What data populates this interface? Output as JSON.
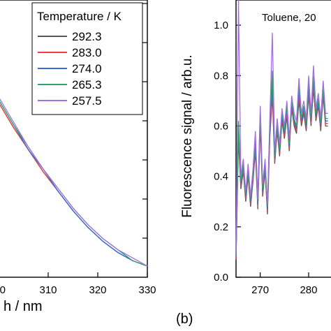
{
  "panels": {
    "a": {
      "xlabel_visible": "h / nm",
      "legend_title": "Temperature / K"
    },
    "b": {
      "panel_label": "(b)",
      "ylabel": "Fluorescence signal / arb.u.",
      "annotation": "Toluene, 20"
    }
  },
  "colors": {
    "292.3": "#555555",
    "283.0": "#e8413c",
    "274.0": "#2f6fd6",
    "265.3": "#2ea36b",
    "257.5": "#a36fe0",
    "axis": "#000000"
  },
  "chart_data": [
    {
      "type": "line",
      "panel": "a",
      "xlabel": "h / nm",
      "ylabel": "",
      "xlim": [
        300,
        330
      ],
      "x_ticks": [
        "0",
        "310",
        "320",
        "330"
      ],
      "legend": {
        "title": "Temperature / K",
        "placement": "top-right"
      },
      "series": [
        {
          "name": "292.3",
          "x": [
            300,
            303,
            306,
            309,
            312,
            315,
            318,
            321,
            324,
            327,
            330
          ],
          "y": [
            0.63,
            0.54,
            0.46,
            0.38,
            0.31,
            0.24,
            0.18,
            0.13,
            0.09,
            0.06,
            0.04
          ]
        },
        {
          "name": "283.0",
          "x": [
            300,
            303,
            306,
            309,
            312,
            315,
            318,
            321,
            324,
            327,
            330
          ],
          "y": [
            0.63,
            0.54,
            0.46,
            0.38,
            0.31,
            0.24,
            0.18,
            0.13,
            0.09,
            0.06,
            0.04
          ]
        },
        {
          "name": "274.0",
          "x": [
            300,
            303,
            306,
            309,
            312,
            315,
            318,
            321,
            324,
            327,
            330
          ],
          "y": [
            0.64,
            0.55,
            0.46,
            0.39,
            0.31,
            0.24,
            0.18,
            0.13,
            0.09,
            0.06,
            0.04
          ]
        },
        {
          "name": "265.3",
          "x": [
            300,
            303,
            306,
            309,
            312,
            315,
            318,
            321,
            324,
            327,
            330
          ],
          "y": [
            0.64,
            0.55,
            0.47,
            0.39,
            0.32,
            0.25,
            0.19,
            0.14,
            0.1,
            0.06,
            0.04
          ]
        },
        {
          "name": "257.5",
          "x": [
            300,
            303,
            306,
            309,
            312,
            315,
            318,
            321,
            324,
            327,
            330
          ],
          "y": [
            0.65,
            0.56,
            0.47,
            0.39,
            0.32,
            0.25,
            0.19,
            0.14,
            0.1,
            0.07,
            0.04
          ]
        }
      ]
    },
    {
      "type": "line",
      "panel": "b",
      "title": "Toluene, 20",
      "xlabel": "",
      "ylabel": "Fluorescence signal / arb.u.",
      "ylim": [
        0.0,
        1.1
      ],
      "y_ticks": [
        "0.0",
        "0.2",
        "0.4",
        "0.6",
        "0.8",
        "1.0"
      ],
      "x_ticks": [
        "270",
        "280"
      ],
      "series": [
        {
          "name": "292.3",
          "x": [
            265,
            265.5,
            266,
            266.5,
            267,
            267.5,
            268,
            268.5,
            269,
            269.5,
            270,
            270.5,
            271,
            271.5,
            272,
            272.5,
            273,
            273.5,
            274,
            274.5,
            275,
            275.5,
            276,
            276.5,
            277,
            277.5,
            278,
            278.5,
            279,
            279.5,
            280,
            280.5,
            281,
            281.5,
            282,
            282.5,
            283,
            283.5,
            284
          ],
          "y": [
            0.07,
            0.55,
            0.35,
            0.42,
            0.3,
            0.4,
            0.28,
            0.38,
            0.5,
            0.27,
            0.6,
            0.32,
            0.42,
            0.25,
            0.56,
            0.72,
            0.45,
            0.58,
            0.48,
            0.62,
            0.55,
            0.64,
            0.5,
            0.67,
            0.6,
            0.57,
            0.7,
            0.6,
            0.65,
            0.58,
            0.72,
            0.6,
            0.75,
            0.62,
            0.68,
            0.58,
            0.72,
            0.6,
            0.6
          ]
        },
        {
          "name": "283.0",
          "x": [
            265,
            265.5,
            266,
            266.5,
            267,
            267.5,
            268,
            268.5,
            269,
            269.5,
            270,
            270.5,
            271,
            271.5,
            272,
            272.5,
            273,
            273.5,
            274,
            274.5,
            275,
            275.5,
            276,
            276.5,
            277,
            277.5,
            278,
            278.5,
            279,
            279.5,
            280,
            280.5,
            281,
            281.5,
            282,
            282.5,
            283,
            283.5,
            284
          ],
          "y": [
            0.07,
            0.57,
            0.36,
            0.43,
            0.31,
            0.41,
            0.29,
            0.39,
            0.52,
            0.28,
            0.62,
            0.33,
            0.43,
            0.26,
            0.58,
            0.74,
            0.46,
            0.59,
            0.49,
            0.63,
            0.56,
            0.66,
            0.51,
            0.68,
            0.61,
            0.58,
            0.72,
            0.61,
            0.66,
            0.59,
            0.73,
            0.61,
            0.76,
            0.63,
            0.69,
            0.59,
            0.73,
            0.61,
            0.61
          ]
        },
        {
          "name": "274.0",
          "x": [
            265,
            265.5,
            266,
            266.5,
            267,
            267.5,
            268,
            268.5,
            269,
            269.5,
            270,
            270.5,
            271,
            271.5,
            272,
            272.5,
            273,
            273.5,
            274,
            274.5,
            275,
            275.5,
            276,
            276.5,
            277,
            277.5,
            278,
            278.5,
            279,
            279.5,
            280,
            280.5,
            281,
            281.5,
            282,
            282.5,
            283,
            283.5,
            284
          ],
          "y": [
            0.08,
            0.6,
            0.37,
            0.44,
            0.32,
            0.42,
            0.3,
            0.4,
            0.54,
            0.29,
            0.64,
            0.34,
            0.44,
            0.27,
            0.6,
            0.78,
            0.47,
            0.6,
            0.5,
            0.64,
            0.57,
            0.67,
            0.52,
            0.69,
            0.62,
            0.59,
            0.74,
            0.62,
            0.67,
            0.6,
            0.75,
            0.62,
            0.78,
            0.64,
            0.7,
            0.6,
            0.74,
            0.62,
            0.62
          ]
        },
        {
          "name": "265.3",
          "x": [
            265,
            265.5,
            266,
            266.5,
            267,
            267.5,
            268,
            268.5,
            269,
            269.5,
            270,
            270.5,
            271,
            271.5,
            272,
            272.5,
            273,
            273.5,
            274,
            274.5,
            275,
            275.5,
            276,
            276.5,
            277,
            277.5,
            278,
            278.5,
            279,
            279.5,
            280,
            280.5,
            281,
            281.5,
            282,
            282.5,
            283,
            283.5,
            284
          ],
          "y": [
            0.08,
            0.62,
            0.38,
            0.45,
            0.33,
            0.43,
            0.31,
            0.41,
            0.56,
            0.3,
            0.66,
            0.35,
            0.45,
            0.28,
            0.62,
            0.82,
            0.48,
            0.61,
            0.51,
            0.65,
            0.58,
            0.68,
            0.53,
            0.7,
            0.63,
            0.6,
            0.76,
            0.63,
            0.68,
            0.61,
            0.77,
            0.63,
            0.8,
            0.65,
            0.71,
            0.61,
            0.75,
            0.63,
            0.63
          ]
        },
        {
          "name": "257.5",
          "x": [
            265,
            265.5,
            266,
            266.5,
            267,
            267.5,
            268,
            268.5,
            269,
            269.5,
            270,
            270.5,
            271,
            271.5,
            272,
            272.5,
            273,
            273.5,
            274,
            274.5,
            275,
            275.5,
            276,
            276.5,
            277,
            277.5,
            278,
            278.5,
            279,
            279.5,
            280,
            280.5,
            281,
            281.5,
            282,
            282.5,
            283,
            283.5,
            284
          ],
          "y": [
            0.09,
            1.1,
            0.4,
            0.47,
            0.34,
            0.45,
            0.32,
            0.43,
            0.58,
            0.31,
            0.68,
            0.37,
            0.47,
            0.29,
            0.64,
            0.97,
            0.5,
            0.63,
            0.53,
            0.67,
            0.6,
            0.7,
            0.55,
            0.72,
            0.65,
            0.62,
            0.79,
            0.65,
            0.7,
            0.63,
            0.8,
            0.65,
            0.84,
            0.67,
            0.73,
            0.63,
            0.78,
            0.65,
            0.65
          ]
        }
      ]
    }
  ]
}
